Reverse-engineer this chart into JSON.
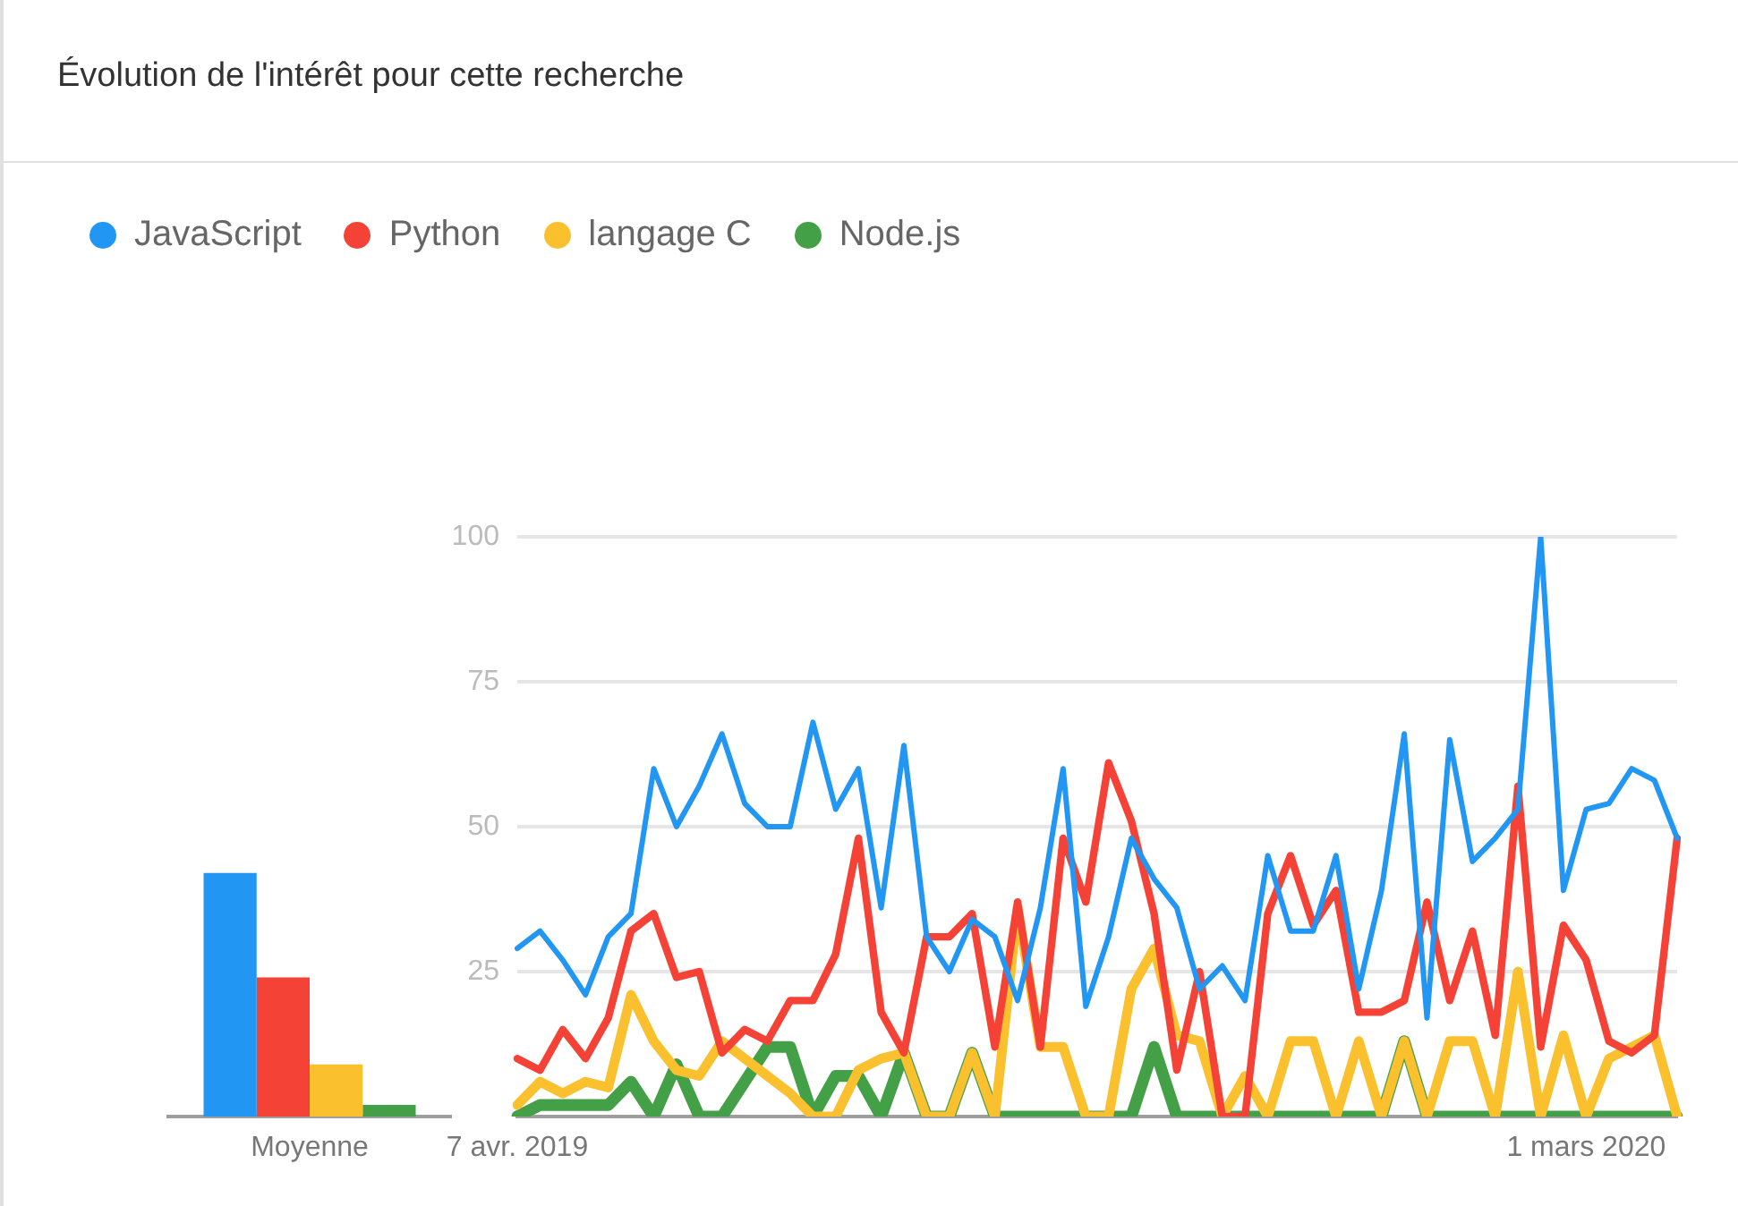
{
  "chart_data": [
    {
      "type": "bar",
      "categories": [
        "Moyenne"
      ],
      "ylim": [
        0,
        100
      ],
      "tick_labels": "x",
      "grid": false,
      "series": [
        {
          "color": "#2196f3",
          "values": [
            42
          ]
        },
        {
          "color": "#f44336",
          "values": [
            24
          ]
        },
        {
          "color": "#fbc02d",
          "values": [
            9
          ]
        },
        {
          "color": "#43a047",
          "values": [
            2
          ]
        }
      ]
    },
    {
      "type": "line",
      "title": "Évolution de l'intérêt pour cette recherche",
      "legend": "top left",
      "grid": "y",
      "marker": "none",
      "line_style": "solid",
      "categories": [
        "7 avr. 2019",
        null,
        null,
        null,
        null,
        null,
        null,
        null,
        null,
        null,
        null,
        null,
        null,
        null,
        null,
        null,
        null,
        null,
        null,
        null,
        null,
        null,
        null,
        null,
        null,
        null,
        null,
        null,
        null,
        null,
        null,
        null,
        null,
        null,
        null,
        null,
        null,
        null,
        null,
        null,
        null,
        null,
        null,
        null,
        null,
        null,
        null,
        "1 mars 2020",
        null,
        null,
        null,
        null
      ],
      "ylim": [
        0,
        100
      ],
      "yticks": [
        25,
        50,
        75,
        100
      ],
      "series": [
        {
          "name": "JavaScript",
          "color": "#2196f3",
          "values": [
            29,
            32,
            27,
            21,
            31,
            35,
            60,
            50,
            57,
            66,
            54,
            50,
            50,
            68,
            53,
            60,
            36,
            64,
            31,
            25,
            34,
            31,
            20,
            36,
            60,
            19,
            31,
            48,
            41,
            36,
            22,
            26,
            20,
            45,
            32,
            32,
            45,
            22,
            39,
            66,
            17,
            65,
            44,
            48,
            53,
            100,
            39,
            53,
            54,
            60,
            58,
            48
          ]
        },
        {
          "name": "Python",
          "color": "#f44336",
          "values": [
            10,
            8,
            15,
            10,
            17,
            32,
            35,
            24,
            25,
            11,
            15,
            13,
            20,
            20,
            28,
            48,
            18,
            11,
            31,
            31,
            35,
            12,
            37,
            12,
            48,
            37,
            61,
            51,
            35,
            8,
            25,
            0,
            0,
            35,
            45,
            33,
            39,
            18,
            18,
            20,
            37,
            20,
            32,
            14,
            57,
            12,
            33,
            27,
            13,
            11,
            14,
            48
          ]
        },
        {
          "name": "langage C",
          "color": "#fbc02d",
          "values": [
            2,
            6,
            4,
            6,
            5,
            21,
            13,
            8,
            7,
            13,
            10,
            7,
            4,
            0,
            0,
            8,
            10,
            11,
            0,
            0,
            11,
            0,
            36,
            12,
            12,
            0,
            0,
            22,
            29,
            14,
            13,
            0,
            7,
            0,
            13,
            13,
            0,
            13,
            0,
            13,
            0,
            13,
            13,
            0,
            25,
            0,
            14,
            0,
            10,
            12,
            14,
            0
          ]
        },
        {
          "name": "Node.js",
          "color": "#43a047",
          "values": [
            0,
            2,
            2,
            2,
            2,
            6,
            0,
            9,
            0,
            0,
            6,
            12,
            12,
            0,
            7,
            7,
            0,
            11,
            0,
            0,
            11,
            0,
            0,
            0,
            0,
            0,
            0,
            0,
            12,
            0,
            0,
            0,
            0,
            0,
            0,
            0,
            0,
            0,
            0,
            13,
            0,
            0,
            0,
            0,
            0,
            0,
            0,
            0,
            0,
            0,
            0,
            0
          ]
        }
      ]
    }
  ]
}
